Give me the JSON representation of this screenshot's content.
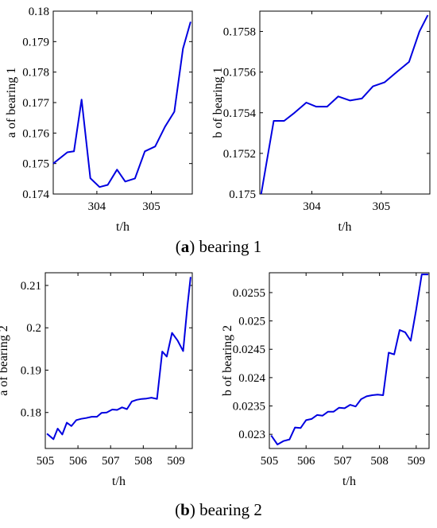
{
  "captions": {
    "a": {
      "letter": "a",
      "text": " bearing 1"
    },
    "b": {
      "letter": "b",
      "text": " bearing 2"
    }
  },
  "chart_data": [
    {
      "type": "line",
      "panel": "a",
      "xlabel": "t/h",
      "ylabel": "a of  bearing 1",
      "xlim": [
        303.2,
        305.75
      ],
      "ylim": [
        0.174,
        0.18
      ],
      "xticks": [
        304,
        305
      ],
      "yticks": [
        0.174,
        0.175,
        0.176,
        0.177,
        0.178,
        0.179,
        0.18
      ],
      "ytick_labels": [
        "0.174",
        "0.175",
        "0.176",
        "0.177",
        "0.178",
        "0.179",
        "0.18"
      ],
      "line_color": "#0000e0",
      "series": [
        {
          "x": [
            303.2,
            303.46,
            303.58,
            303.72,
            303.88,
            304.05,
            304.2,
            304.37,
            304.52,
            304.7,
            304.88,
            305.07,
            305.25,
            305.42,
            305.58,
            305.72
          ],
          "values": [
            0.175,
            0.17537,
            0.1754,
            0.1771,
            0.17452,
            0.17423,
            0.1743,
            0.1748,
            0.17441,
            0.17451,
            0.1754,
            0.17556,
            0.17621,
            0.1767,
            0.17877,
            0.17965
          ]
        }
      ]
    },
    {
      "type": "line",
      "panel": "a",
      "xlabel": "t/h",
      "ylabel": "b of  bearing 1",
      "xlim": [
        303.25,
        305.7
      ],
      "ylim": [
        0.175,
        0.1759
      ],
      "xticks": [
        304,
        305
      ],
      "yticks": [
        0.175,
        0.1752,
        0.1754,
        0.1756,
        0.1758
      ],
      "ytick_labels": [
        "0.175",
        "0.1752",
        "0.1754",
        "0.1756",
        "0.1758"
      ],
      "line_color": "#0000e0",
      "series": [
        {
          "x": [
            303.27,
            303.45,
            303.6,
            303.75,
            303.92,
            304.06,
            304.22,
            304.38,
            304.55,
            304.72,
            304.88,
            305.05,
            305.22,
            305.4,
            305.55,
            305.67
          ],
          "values": [
            0.175,
            0.17536,
            0.17536,
            0.1754,
            0.17545,
            0.17543,
            0.17543,
            0.17548,
            0.17546,
            0.17547,
            0.17553,
            0.17555,
            0.1756,
            0.17565,
            0.1758,
            0.17588
          ]
        }
      ]
    },
    {
      "type": "line",
      "panel": "b",
      "xlabel": "t/h",
      "ylabel": "a of  bearing 2",
      "xlim": [
        505,
        509.5
      ],
      "ylim": [
        0.1715,
        0.213
      ],
      "xticks": [
        505,
        506,
        507,
        508,
        509
      ],
      "yticks": [
        0.18,
        0.19,
        0.2,
        0.21
      ],
      "ytick_labels": [
        "0.18",
        "0.19",
        "0.2",
        "0.21"
      ],
      "line_color": "#0000e0",
      "series": [
        {
          "x": [
            505.05,
            505.25,
            505.38,
            505.52,
            505.66,
            505.8,
            505.95,
            506.1,
            506.25,
            506.42,
            506.58,
            506.72,
            506.88,
            507.05,
            507.2,
            507.35,
            507.5,
            507.65,
            507.8,
            507.95,
            508.1,
            508.25,
            508.42,
            508.58,
            508.72,
            508.88,
            509.05,
            509.22,
            509.35,
            509.45
          ],
          "values": [
            0.175,
            0.1737,
            0.1762,
            0.1748,
            0.1776,
            0.1768,
            0.1782,
            0.1785,
            0.1787,
            0.179,
            0.179,
            0.1799,
            0.18,
            0.1807,
            0.1806,
            0.1812,
            0.1808,
            0.1826,
            0.183,
            0.1832,
            0.1833,
            0.1835,
            0.1832,
            0.1944,
            0.1932,
            0.1988,
            0.197,
            0.1945,
            0.205,
            0.212
          ]
        }
      ]
    },
    {
      "type": "line",
      "panel": "b",
      "xlabel": "t/h",
      "ylabel": "b of  bearing 2",
      "xlim": [
        505,
        509.35
      ],
      "ylim": [
        0.02275,
        0.02585
      ],
      "xticks": [
        505,
        506,
        507,
        508,
        509
      ],
      "yticks": [
        0.023,
        0.0235,
        0.024,
        0.0245,
        0.025,
        0.0255
      ],
      "ytick_labels": [
        "0.023",
        "0.0235",
        "0.024",
        "0.0245",
        "0.025",
        "0.0255"
      ],
      "line_color": "#0000e0",
      "series": [
        {
          "x": [
            505.05,
            505.22,
            505.38,
            505.55,
            505.7,
            505.85,
            506.0,
            506.15,
            506.3,
            506.45,
            506.6,
            506.75,
            506.9,
            507.05,
            507.2,
            507.35,
            507.5,
            507.65,
            507.8,
            507.95,
            508.1,
            508.25,
            508.4,
            508.55,
            508.7,
            508.85,
            509.0,
            509.15,
            509.25,
            509.33
          ],
          "values": [
            0.02298,
            0.02282,
            0.02288,
            0.02291,
            0.02312,
            0.02311,
            0.02325,
            0.02327,
            0.02334,
            0.02333,
            0.0234,
            0.0234,
            0.02347,
            0.02346,
            0.02352,
            0.02349,
            0.02362,
            0.02367,
            0.02369,
            0.0237,
            0.02369,
            0.02444,
            0.02441,
            0.02484,
            0.0248,
            0.02465,
            0.0252,
            0.02582,
            0.02582,
            0.02582
          ]
        }
      ]
    }
  ]
}
